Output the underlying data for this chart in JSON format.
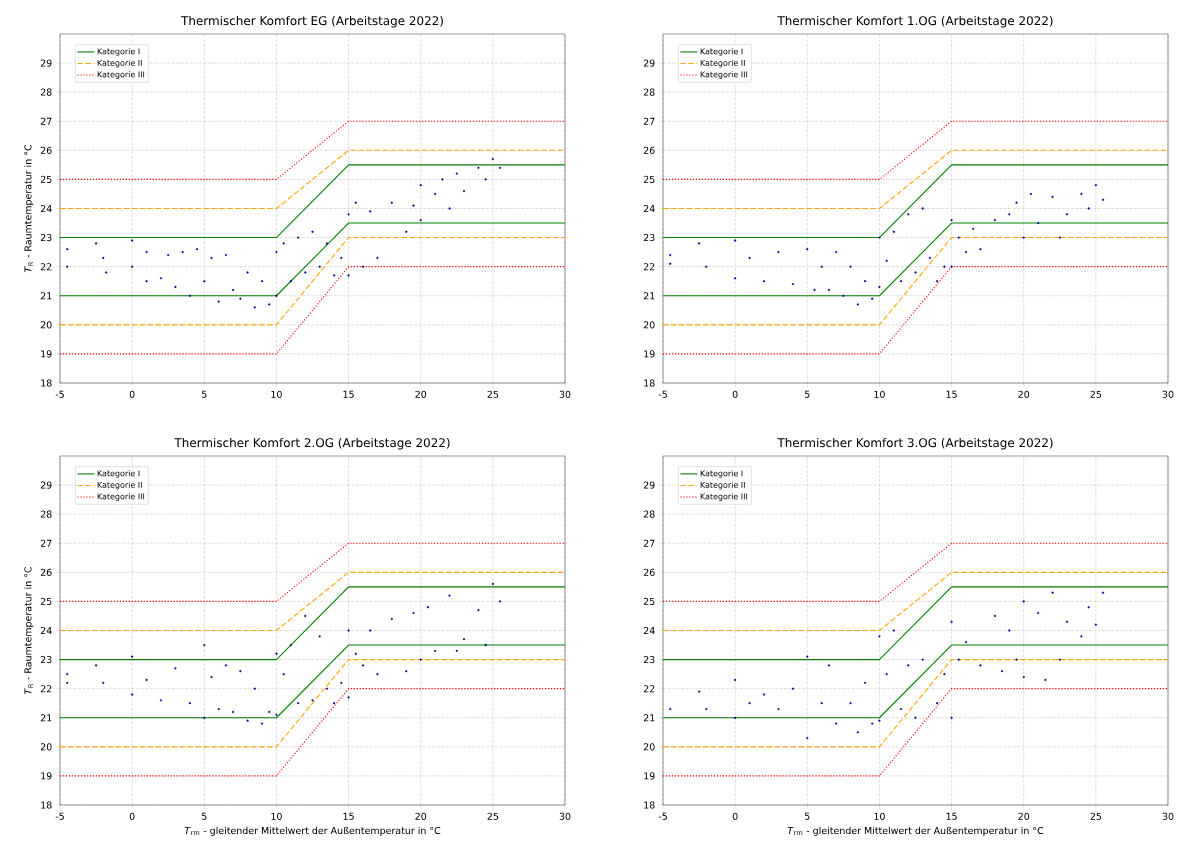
{
  "chart_data": [
    {
      "type": "scatter",
      "title": "Thermischer Komfort EG (Arbeitstage 2022)",
      "ylabel": "*T*$_{R}$ - Raumtemperatur in °C",
      "xlim": [
        -5,
        30
      ],
      "ylim": [
        18,
        30
      ],
      "xticks": [
        -5,
        0,
        5,
        10,
        15,
        20,
        25,
        30
      ],
      "yticks": [
        18,
        19,
        20,
        21,
        22,
        23,
        24,
        25,
        26,
        27,
        28,
        29
      ],
      "grid": true,
      "legend": "top left",
      "series": [
        {
          "name": "Kategorie I",
          "type": "line",
          "line_style": "solid",
          "color": "#008000",
          "x": [
            -5,
            10,
            15,
            30
          ],
          "values": [
            23,
            23,
            25.5,
            25.5
          ]
        },
        {
          "name": "Kategorie II",
          "type": "line",
          "line_style": "dashed",
          "color": "#ffa500",
          "x": [
            -5,
            10,
            15,
            30
          ],
          "values": [
            24,
            24,
            26,
            26
          ]
        },
        {
          "name": "Kategorie III",
          "type": "line",
          "line_style": "dotted",
          "color": "#ff0000",
          "x": [
            -5,
            10,
            15,
            30
          ],
          "values": [
            25,
            25,
            27,
            27
          ]
        },
        {
          "type": "line",
          "line_style": "solid",
          "color": "#008000",
          "x": [
            -5,
            10,
            15,
            30
          ],
          "values": [
            21,
            21,
            23.5,
            23.5
          ]
        },
        {
          "type": "line",
          "line_style": "dashed",
          "color": "#ffa500",
          "x": [
            -5,
            10,
            15,
            30
          ],
          "values": [
            20,
            20,
            23,
            23
          ]
        },
        {
          "type": "line",
          "line_style": "dotted",
          "color": "#ff0000",
          "x": [
            -5,
            10,
            15,
            30
          ],
          "values": [
            19,
            19,
            22,
            22
          ]
        },
        {
          "color": "#00008b",
          "x": [
            -4.5,
            -4.5,
            -2.5,
            -2,
            -1.8,
            0,
            0,
            1,
            1,
            2,
            2.5,
            3,
            3.5,
            4,
            4.5,
            5,
            5.5,
            6,
            6.5,
            7,
            7.5,
            8,
            8.5,
            9,
            9.5,
            10,
            10,
            10.5,
            11,
            11.5,
            12,
            12.5,
            13,
            13.5,
            14,
            14.5,
            15,
            15,
            15.5,
            16,
            16.5,
            17,
            18,
            19,
            19.5,
            20,
            20,
            21,
            21.5,
            22,
            22.5,
            23,
            24,
            24.5,
            25,
            25.5
          ],
          "values": [
            22.0,
            22.6,
            22.8,
            22.3,
            21.8,
            22.9,
            22.0,
            21.5,
            22.5,
            21.6,
            22.4,
            21.3,
            22.5,
            21.0,
            22.6,
            21.5,
            22.3,
            20.8,
            22.4,
            21.2,
            20.9,
            21.8,
            20.6,
            21.5,
            20.7,
            22.5,
            21.0,
            22.8,
            21.5,
            23.0,
            21.8,
            23.2,
            22.0,
            22.8,
            21.7,
            22.3,
            23.8,
            21.7,
            24.2,
            22.0,
            23.9,
            22.3,
            24.2,
            23.2,
            24.1,
            24.8,
            23.6,
            24.5,
            25.0,
            24.0,
            25.2,
            24.6,
            25.4,
            25.0,
            25.7,
            25.4
          ]
        }
      ]
    },
    {
      "type": "scatter",
      "title": "Thermischer Komfort 1.OG (Arbeitstage 2022)",
      "xlim": [
        -5,
        30
      ],
      "ylim": [
        18,
        30
      ],
      "xticks": [
        -5,
        0,
        5,
        10,
        15,
        20,
        25,
        30
      ],
      "yticks": [
        18,
        19,
        20,
        21,
        22,
        23,
        24,
        25,
        26,
        27,
        28,
        29
      ],
      "grid": true,
      "legend": "top left",
      "series": [
        {
          "name": "Kategorie I",
          "type": "line",
          "line_style": "solid",
          "color": "#008000",
          "x": [
            -5,
            10,
            15,
            30
          ],
          "values": [
            23,
            23,
            25.5,
            25.5
          ]
        },
        {
          "name": "Kategorie II",
          "type": "line",
          "line_style": "dashed",
          "color": "#ffa500",
          "x": [
            -5,
            10,
            15,
            30
          ],
          "values": [
            24,
            24,
            26,
            26
          ]
        },
        {
          "name": "Kategorie III",
          "type": "line",
          "line_style": "dotted",
          "color": "#ff0000",
          "x": [
            -5,
            10,
            15,
            30
          ],
          "values": [
            25,
            25,
            27,
            27
          ]
        },
        {
          "type": "line",
          "line_style": "solid",
          "color": "#008000",
          "x": [
            -5,
            10,
            15,
            30
          ],
          "values": [
            21,
            21,
            23.5,
            23.5
          ]
        },
        {
          "type": "line",
          "line_style": "dashed",
          "color": "#ffa500",
          "x": [
            -5,
            10,
            15,
            30
          ],
          "values": [
            20,
            20,
            23,
            23
          ]
        },
        {
          "type": "line",
          "line_style": "dotted",
          "color": "#ff0000",
          "x": [
            -5,
            10,
            15,
            30
          ],
          "values": [
            19,
            19,
            22,
            22
          ]
        },
        {
          "color": "#00008b",
          "x": [
            -4.5,
            -4.5,
            -2.5,
            -2,
            0,
            0,
            1,
            2,
            3,
            4,
            5,
            5.5,
            6,
            6.5,
            7,
            7.5,
            8,
            8.5,
            9,
            9.5,
            10,
            10,
            10.5,
            11,
            11.5,
            12,
            12.5,
            13,
            13.5,
            14,
            14.5,
            15,
            15,
            15.5,
            16,
            16.5,
            17,
            18,
            19,
            19.5,
            20,
            20.5,
            21,
            22,
            22.5,
            23,
            24,
            24.5,
            25,
            25.5
          ],
          "values": [
            22.1,
            22.4,
            22.8,
            22.0,
            22.9,
            21.6,
            22.3,
            21.5,
            22.5,
            21.4,
            22.6,
            21.2,
            22.0,
            21.2,
            22.5,
            21.0,
            22.0,
            20.7,
            21.5,
            20.9,
            23.0,
            21.3,
            22.2,
            23.2,
            21.5,
            23.8,
            21.8,
            24.0,
            22.3,
            21.5,
            22.0,
            23.6,
            22.0,
            23.0,
            22.5,
            23.3,
            22.6,
            23.6,
            23.8,
            24.2,
            23.0,
            24.5,
            23.5,
            24.4,
            23.0,
            23.8,
            24.5,
            24.0,
            24.8,
            24.3
          ]
        }
      ]
    },
    {
      "type": "scatter",
      "title": "Thermischer Komfort 2.OG (Arbeitstage 2022)",
      "xlabel": "*T*$_{rm}$ - gleitender Mittelwert der Außentemperatur in °C",
      "ylabel": "*T*$_{R}$ - Raumtemperatur in °C",
      "xlim": [
        -5,
        30
      ],
      "ylim": [
        18,
        30
      ],
      "xticks": [
        -5,
        0,
        5,
        10,
        15,
        20,
        25,
        30
      ],
      "yticks": [
        18,
        19,
        20,
        21,
        22,
        23,
        24,
        25,
        26,
        27,
        28,
        29
      ],
      "grid": true,
      "legend": "top left",
      "series": [
        {
          "name": "Kategorie I",
          "type": "line",
          "line_style": "solid",
          "color": "#008000",
          "x": [
            -5,
            10,
            15,
            30
          ],
          "values": [
            23,
            23,
            25.5,
            25.5
          ]
        },
        {
          "name": "Kategorie II",
          "type": "line",
          "line_style": "dashed",
          "color": "#ffa500",
          "x": [
            -5,
            10,
            15,
            30
          ],
          "values": [
            24,
            24,
            26,
            26
          ]
        },
        {
          "name": "Kategorie III",
          "type": "line",
          "line_style": "dotted",
          "color": "#ff0000",
          "x": [
            -5,
            10,
            15,
            30
          ],
          "values": [
            25,
            25,
            27,
            27
          ]
        },
        {
          "type": "line",
          "line_style": "solid",
          "color": "#008000",
          "x": [
            -5,
            10,
            15,
            30
          ],
          "values": [
            21,
            21,
            23.5,
            23.5
          ]
        },
        {
          "type": "line",
          "line_style": "dashed",
          "color": "#ffa500",
          "x": [
            -5,
            10,
            15,
            30
          ],
          "values": [
            20,
            20,
            23,
            23
          ]
        },
        {
          "type": "line",
          "line_style": "dotted",
          "color": "#ff0000",
          "x": [
            -5,
            10,
            15,
            30
          ],
          "values": [
            19,
            19,
            22,
            22
          ]
        },
        {
          "color": "#00008b",
          "x": [
            -4.5,
            -4.5,
            -2.5,
            -2,
            0,
            0,
            1,
            2,
            3,
            4,
            5,
            5,
            5.5,
            6,
            6.5,
            7,
            7.5,
            8,
            8.5,
            9,
            9.5,
            10,
            10,
            10.5,
            11,
            11.5,
            12,
            12.5,
            13,
            13.5,
            14,
            14.5,
            15,
            15,
            15.5,
            16,
            16.5,
            17,
            18,
            19,
            19.5,
            20,
            20.5,
            21,
            22,
            22.5,
            23,
            24,
            24.5,
            25,
            25.5
          ],
          "values": [
            22.2,
            22.5,
            22.8,
            22.2,
            23.1,
            21.8,
            22.3,
            21.6,
            22.7,
            21.5,
            21.0,
            23.5,
            22.4,
            21.3,
            22.8,
            21.2,
            22.6,
            20.9,
            22.0,
            20.8,
            21.2,
            23.2,
            21.1,
            22.5,
            23.5,
            21.5,
            24.5,
            21.6,
            23.8,
            22.0,
            21.5,
            22.2,
            24.0,
            21.7,
            23.2,
            22.8,
            24.0,
            22.5,
            24.4,
            22.6,
            24.6,
            23.0,
            24.8,
            23.3,
            25.2,
            23.3,
            23.7,
            24.7,
            23.5,
            25.6,
            25.0
          ]
        }
      ]
    },
    {
      "type": "scatter",
      "title": "Thermischer Komfort 3.OG (Arbeitstage 2022)",
      "xlabel": "*T*$_{rm}$ - gleitender Mittelwert der Außentemperatur in °C",
      "xlim": [
        -5,
        30
      ],
      "ylim": [
        18,
        30
      ],
      "xticks": [
        -5,
        0,
        5,
        10,
        15,
        20,
        25,
        30
      ],
      "yticks": [
        18,
        19,
        20,
        21,
        22,
        23,
        24,
        25,
        26,
        27,
        28,
        29
      ],
      "grid": true,
      "legend": "top left",
      "series": [
        {
          "name": "Kategorie I",
          "type": "line",
          "line_style": "solid",
          "color": "#008000",
          "x": [
            -5,
            10,
            15,
            30
          ],
          "values": [
            23,
            23,
            25.5,
            25.5
          ]
        },
        {
          "name": "Kategorie II",
          "type": "line",
          "line_style": "dashed",
          "color": "#ffa500",
          "x": [
            -5,
            10,
            15,
            30
          ],
          "values": [
            24,
            24,
            26,
            26
          ]
        },
        {
          "name": "Kategorie III",
          "type": "line",
          "line_style": "dotted",
          "color": "#ff0000",
          "x": [
            -5,
            10,
            15,
            30
          ],
          "values": [
            25,
            25,
            27,
            27
          ]
        },
        {
          "type": "line",
          "line_style": "solid",
          "color": "#008000",
          "x": [
            -5,
            10,
            15,
            30
          ],
          "values": [
            21,
            21,
            23.5,
            23.5
          ]
        },
        {
          "type": "line",
          "line_style": "dashed",
          "color": "#ffa500",
          "x": [
            -5,
            10,
            15,
            30
          ],
          "values": [
            20,
            20,
            23,
            23
          ]
        },
        {
          "type": "line",
          "line_style": "dotted",
          "color": "#ff0000",
          "x": [
            -5,
            10,
            15,
            30
          ],
          "values": [
            19,
            19,
            22,
            22
          ]
        },
        {
          "color": "#00008b",
          "x": [
            -4.5,
            -2.5,
            -2,
            0,
            0,
            1,
            2,
            3,
            4,
            5,
            5,
            6,
            6.5,
            7,
            8,
            8.5,
            9,
            9.5,
            10,
            10,
            10.5,
            11,
            11.5,
            12,
            12.5,
            13,
            14,
            14.5,
            15,
            15,
            15.5,
            16,
            17,
            18,
            18.5,
            19,
            19.5,
            20,
            20,
            21,
            21.5,
            22,
            22.5,
            23,
            24,
            24.5,
            25,
            25.5
          ],
          "values": [
            21.3,
            21.9,
            21.3,
            22.3,
            21.0,
            21.5,
            21.8,
            21.3,
            22.0,
            20.3,
            23.1,
            21.5,
            22.8,
            20.8,
            21.5,
            20.5,
            22.2,
            20.8,
            23.8,
            20.9,
            22.5,
            24.0,
            21.3,
            22.8,
            21.0,
            23.0,
            21.5,
            22.5,
            24.3,
            21.0,
            23.0,
            23.6,
            22.8,
            24.5,
            22.6,
            24.0,
            23.0,
            25.0,
            22.4,
            24.6,
            22.3,
            25.3,
            23.0,
            24.3,
            23.8,
            24.8,
            24.2,
            25.3
          ]
        }
      ]
    }
  ]
}
